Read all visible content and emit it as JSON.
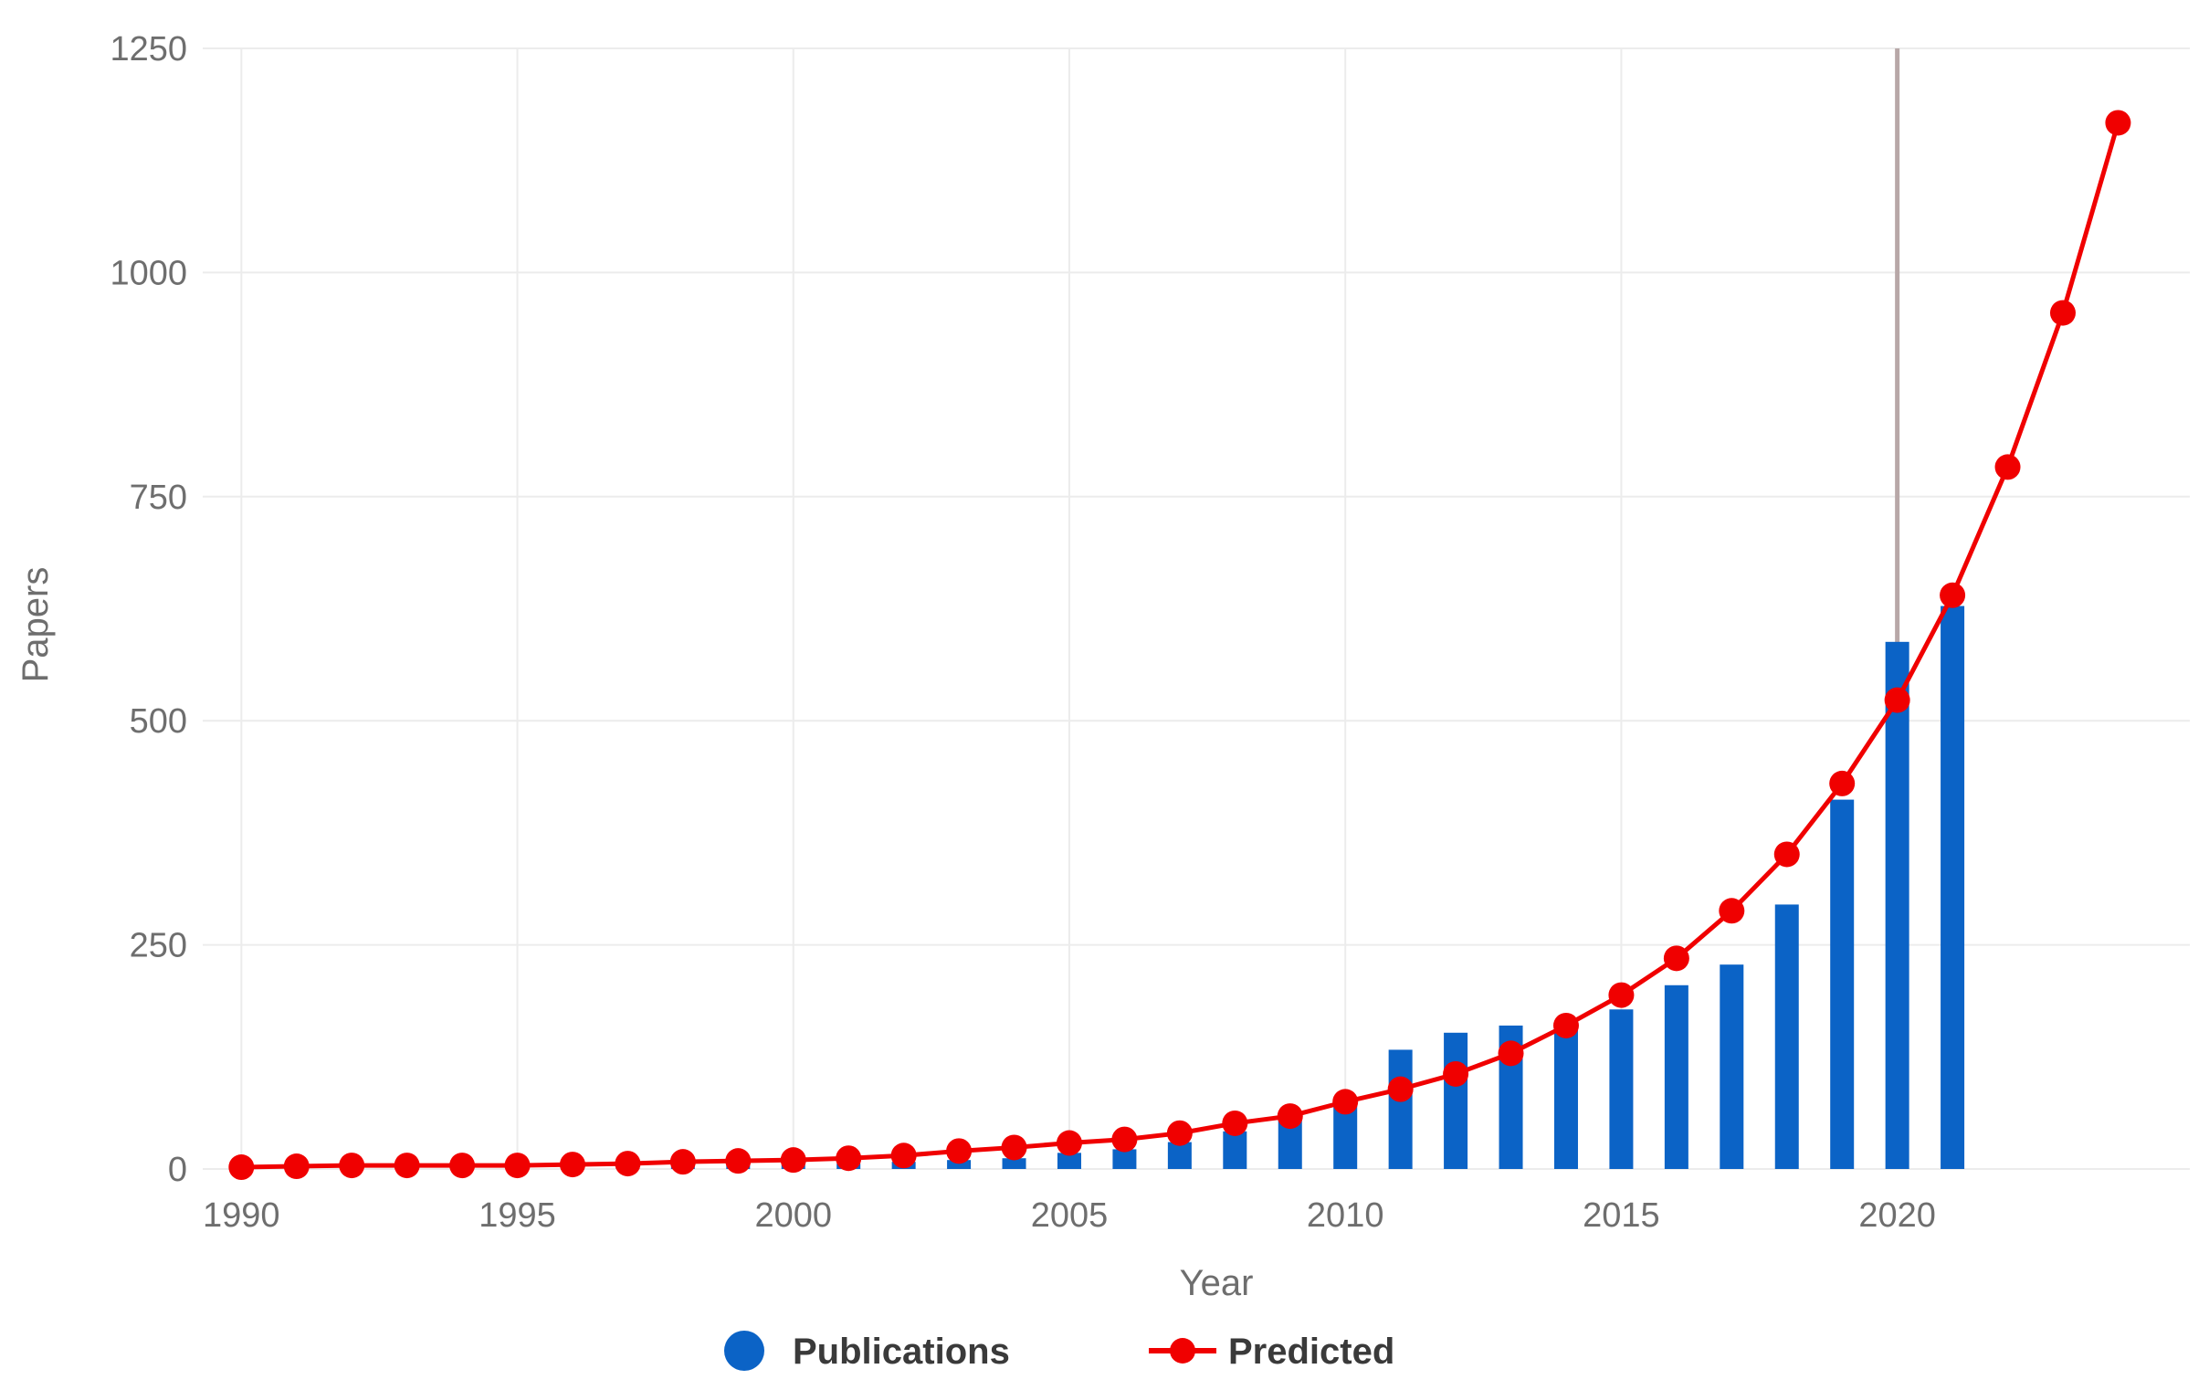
{
  "chart_data": {
    "type": "bar",
    "xlabel": "Year",
    "ylabel": "Papers",
    "ylim": [
      0,
      1250
    ],
    "xlim": [
      1989.3,
      2025.3
    ],
    "y_ticks": [
      0,
      250,
      500,
      750,
      1000,
      1250
    ],
    "x_ticks": [
      1990,
      1995,
      2000,
      2005,
      2010,
      2015,
      2020
    ],
    "grid": true,
    "legend_position": "bottom",
    "reference_line_x": 2020,
    "colors": {
      "publications": "#0b63c6",
      "predicted": "#f00000",
      "reference_line": "#b8a8a8",
      "grid": "#ececec"
    },
    "series": [
      {
        "name": "Publications",
        "type": "bar",
        "x": [
          1990,
          1991,
          1992,
          1993,
          1994,
          1995,
          1996,
          1997,
          1998,
          1999,
          2000,
          2001,
          2002,
          2003,
          2004,
          2005,
          2006,
          2007,
          2008,
          2009,
          2010,
          2011,
          2012,
          2013,
          2014,
          2015,
          2016,
          2017,
          2018,
          2019,
          2020,
          2021
        ],
        "values": [
          1,
          2,
          2,
          2,
          2,
          2,
          2,
          3,
          3,
          4,
          5,
          6,
          8,
          10,
          12,
          18,
          22,
          30,
          42,
          55,
          80,
          133,
          152,
          160,
          155,
          178,
          205,
          228,
          295,
          412,
          588,
          628
        ]
      },
      {
        "name": "Predicted",
        "type": "line",
        "x": [
          1990,
          1991,
          1992,
          1993,
          1994,
          1995,
          1996,
          1997,
          1998,
          1999,
          2000,
          2001,
          2002,
          2003,
          2004,
          2005,
          2006,
          2007,
          2008,
          2009,
          2010,
          2011,
          2012,
          2013,
          2014,
          2015,
          2016,
          2017,
          2018,
          2019,
          2020,
          2021,
          2022,
          2023,
          2024
        ],
        "values": [
          2,
          3,
          4,
          4,
          4,
          4,
          5,
          6,
          8,
          9,
          10,
          12,
          15,
          20,
          24,
          29,
          33,
          40,
          51,
          59,
          75,
          89,
          106,
          129,
          160,
          194,
          235,
          288,
          351,
          430,
          523,
          640,
          783,
          955,
          1167
        ]
      }
    ]
  }
}
